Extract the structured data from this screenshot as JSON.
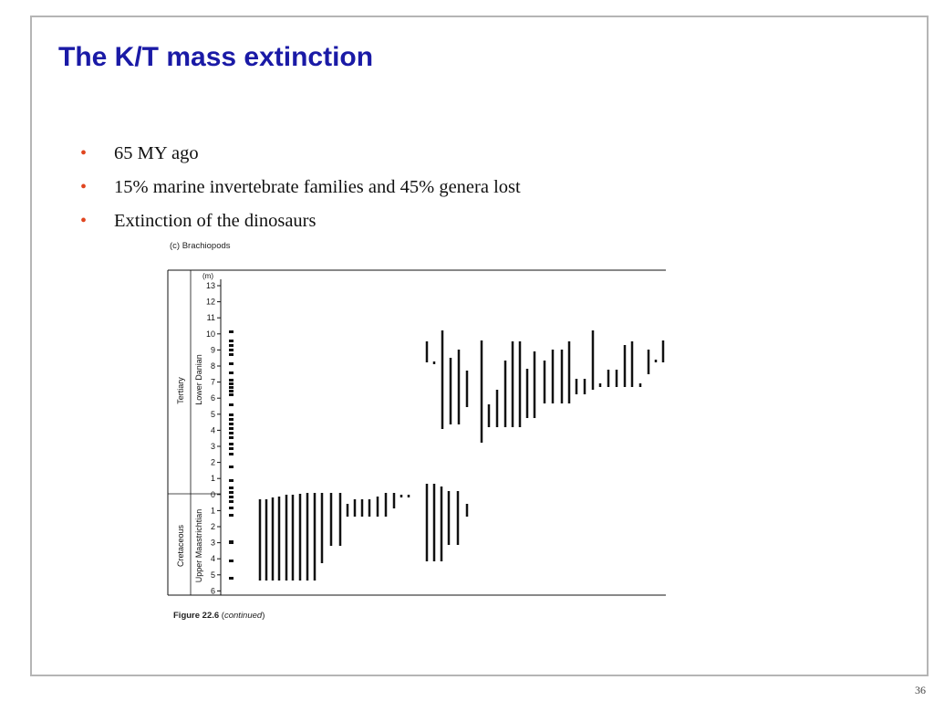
{
  "slide": {
    "title": "The K/T mass extinction",
    "bullets": [
      "65 MY ago",
      "15% marine invertebrate families and 45% genera lost",
      "Extinction of the dinosaurs"
    ],
    "slide_number": "36"
  },
  "figure": {
    "heading": "(c) Brachiopods",
    "caption_label": "Figure 22.6",
    "caption_note": "continued",
    "axis_unit": "(m)",
    "period_labels": [
      "Tertiary",
      "Cretaceous"
    ],
    "stage_labels": [
      "Lower Danian",
      "Upper Maastrichtian"
    ],
    "tertiary_ticks": [
      "13",
      "12",
      "11",
      "10",
      "9",
      "8",
      "7",
      "6",
      "5",
      "4",
      "3",
      "2",
      "1",
      "0"
    ],
    "cretaceous_ticks": [
      "1",
      "2",
      "3",
      "4",
      "5",
      "6"
    ]
  }
}
